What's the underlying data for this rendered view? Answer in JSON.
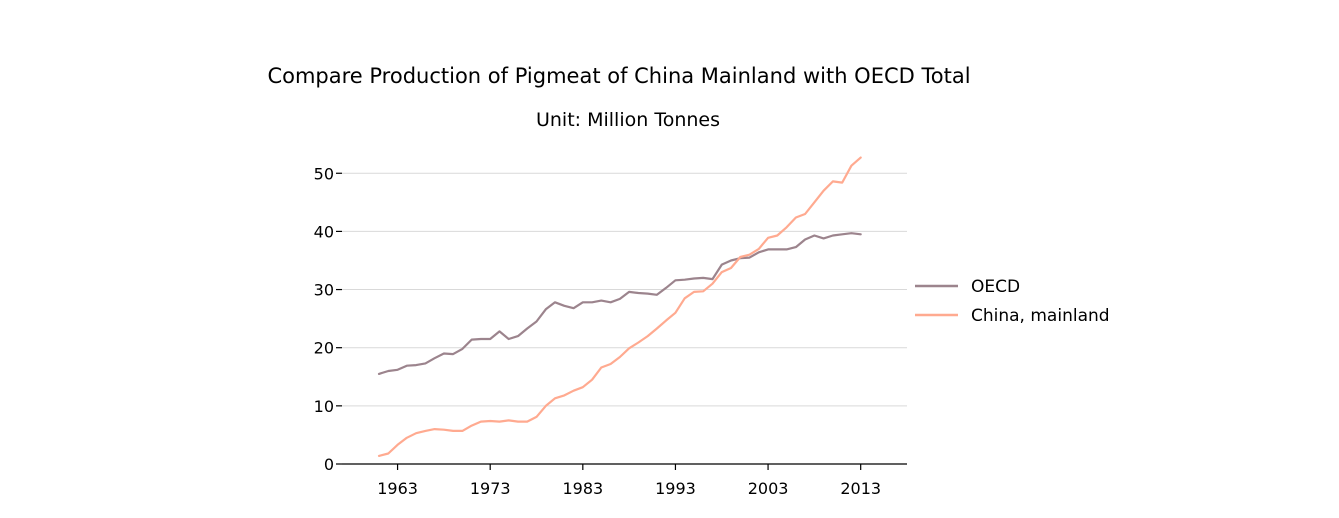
{
  "chart_data": {
    "type": "line",
    "title": "Compare Production of Pigmeat of China Mainland with OECD Total",
    "subtitle": "Unit: Million Tonnes",
    "xlabel": "",
    "ylabel": "",
    "xlim": [
      1957,
      2018
    ],
    "ylim": [
      0,
      54
    ],
    "x_ticks": [
      1963,
      1973,
      1983,
      1993,
      2003,
      2013
    ],
    "y_ticks": [
      0,
      10,
      20,
      30,
      40,
      50
    ],
    "grid": "horizontal",
    "legend_position": "right",
    "x": [
      1961,
      1962,
      1963,
      1964,
      1965,
      1966,
      1967,
      1968,
      1969,
      1970,
      1971,
      1972,
      1973,
      1974,
      1975,
      1976,
      1977,
      1978,
      1979,
      1980,
      1981,
      1982,
      1983,
      1984,
      1985,
      1986,
      1987,
      1988,
      1989,
      1990,
      1991,
      1992,
      1993,
      1994,
      1995,
      1996,
      1997,
      1998,
      1999,
      2000,
      2001,
      2002,
      2003,
      2004,
      2005,
      2006,
      2007,
      2008,
      2009,
      2010,
      2011,
      2012,
      2013
    ],
    "series": [
      {
        "name": "OECD",
        "color": "#9c848d",
        "values": [
          15.5,
          16.0,
          16.2,
          16.9,
          17.0,
          17.3,
          18.2,
          19.0,
          18.9,
          19.8,
          21.4,
          21.5,
          21.5,
          22.8,
          21.5,
          22.0,
          23.3,
          24.5,
          26.6,
          27.8,
          27.2,
          26.8,
          27.8,
          27.8,
          28.1,
          27.8,
          28.4,
          29.6,
          29.4,
          29.3,
          29.1,
          30.3,
          31.6,
          31.7,
          31.9,
          32.0,
          31.8,
          34.3,
          35.0,
          35.4,
          35.5,
          36.4,
          36.9,
          36.9,
          36.9,
          37.3,
          38.6,
          39.3,
          38.8,
          39.3,
          39.5,
          39.7,
          39.5
        ]
      },
      {
        "name": "China, mainland",
        "color": "#ffaa90",
        "values": [
          1.4,
          1.8,
          3.3,
          4.5,
          5.3,
          5.7,
          6.0,
          5.9,
          5.7,
          5.7,
          6.6,
          7.3,
          7.4,
          7.3,
          7.5,
          7.3,
          7.3,
          8.1,
          10.0,
          11.3,
          11.8,
          12.6,
          13.2,
          14.5,
          16.6,
          17.2,
          18.4,
          19.9,
          20.9,
          22.0,
          23.3,
          24.7,
          26.0,
          28.5,
          29.6,
          29.7,
          31.0,
          33.0,
          33.7,
          35.6,
          36.0,
          37.0,
          38.9,
          39.3,
          40.7,
          42.4,
          43.0,
          45.0,
          47.0,
          48.6,
          48.4,
          51.3,
          52.7
        ]
      }
    ]
  }
}
